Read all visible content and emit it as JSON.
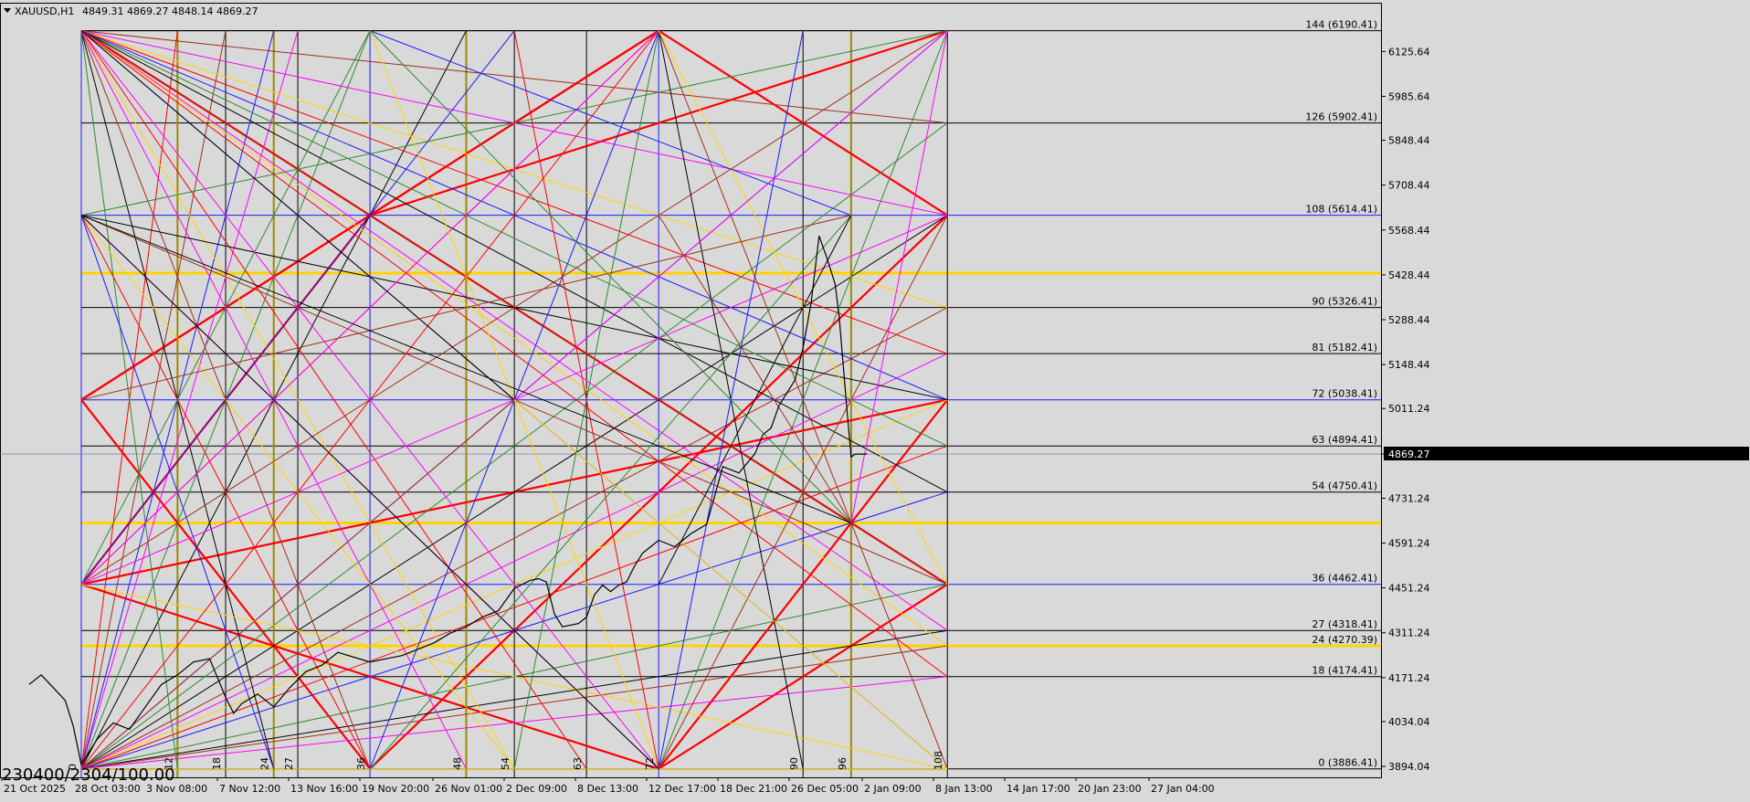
{
  "colors": {
    "background": "#d9d9d9",
    "red": "#ff0000",
    "gold": "#ffd400",
    "blue": "#1a1aff",
    "green": "#2e8b2e",
    "black": "#000000",
    "brown": "#a0301c",
    "magenta": "#ff00ff",
    "olive": "#9a8a00",
    "price_badge_bg": "#000000",
    "price_badge_fg": "#ffffff"
  },
  "chart_data": {
    "type": "line",
    "title": "XAUUSD,H1",
    "ohlc_display": "4849.31 4869.27 4848.14 4869.27",
    "symbol": "XAUUSD",
    "timeframe": "H1",
    "last_price": "4869.27",
    "bottom_caption": "230400/2304/100.00",
    "ylim": [
      3860,
      6235
    ],
    "y_ticks": [
      "6125.64",
      "5985.64",
      "5848.44",
      "5708.44",
      "5568.44",
      "5428.44",
      "5288.44",
      "5148.44",
      "5011.24",
      "4869.27",
      "4731.24",
      "4591.24",
      "4451.24",
      "4311.24",
      "4171.24",
      "4034.04",
      "3894.04"
    ],
    "y_tick_values": [
      6125.64,
      5985.64,
      5848.44,
      5708.44,
      5568.44,
      5428.44,
      5288.44,
      5148.44,
      5011.24,
      4869.27,
      4731.24,
      4591.24,
      4451.24,
      4311.24,
      4171.24,
      4034.04,
      3894.04
    ],
    "x_ticks": [
      "21 Oct 2025",
      "28 Oct 03:00",
      "3 Nov 08:00",
      "7 Nov 12:00",
      "13 Nov 16:00",
      "19 Nov 20:00",
      "26 Nov 01:00",
      "2 Dec 09:00",
      "8 Dec 13:00",
      "12 Dec 17:00",
      "18 Dec 21:00",
      "26 Dec 05:00",
      "2 Jan 09:00",
      "8 Jan 13:00",
      "14 Jan 17:00",
      "20 Jan 23:00",
      "27 Jan 04:00"
    ],
    "levels": [
      {
        "label": "144 (6190.41)",
        "value": 6190.41
      },
      {
        "label": "126 (5902.41)",
        "value": 5902.41
      },
      {
        "label": "108 (5614.41)",
        "value": 5614.41
      },
      {
        "label": "90 (5326.41)",
        "value": 5326.41
      },
      {
        "label": "81 (5182.41)",
        "value": 5182.41
      },
      {
        "label": "72 (5038.41)",
        "value": 5038.41
      },
      {
        "label": "63 (4894.41)",
        "value": 4894.41
      },
      {
        "label": "54 (4750.41)",
        "value": 4750.41
      },
      {
        "label": "36 (4462.41)",
        "value": 4462.41
      },
      {
        "label": "27 (4318.41)",
        "value": 4318.41
      },
      {
        "label": "24 (4270.39)",
        "value": 4270.39
      },
      {
        "label": "18 (4174.41)",
        "value": 4174.41
      },
      {
        "label": "0 (3886.41)",
        "value": 3886.41
      }
    ],
    "gold_levels": [
      5434,
      4654,
      4270.39
    ],
    "time_markers": [
      {
        "label": "0",
        "t": 0
      },
      {
        "label": "12",
        "t": 12
      },
      {
        "label": "18",
        "t": 18
      },
      {
        "label": "24",
        "t": 24
      },
      {
        "label": "27",
        "t": 27
      },
      {
        "label": "36",
        "t": 36
      },
      {
        "label": "48",
        "t": 48
      },
      {
        "label": "54",
        "t": 54
      },
      {
        "label": "63",
        "t": 63
      },
      {
        "label": "72",
        "t": 72
      },
      {
        "label": "90",
        "t": 90
      },
      {
        "label": "96",
        "t": 96
      },
      {
        "label": "108",
        "t": 108
      }
    ],
    "vertical_lines_t": [
      0,
      12,
      18,
      24,
      27,
      36,
      48,
      54,
      63,
      72,
      90,
      96,
      108
    ],
    "gold_vertical_t": [
      12,
      24,
      48,
      96
    ],
    "price_series": {
      "t": [
        -6.5,
        -5,
        -3.5,
        -2,
        -1,
        0,
        2,
        4,
        6,
        8,
        10,
        12,
        14,
        16,
        18,
        19,
        20,
        22,
        24,
        26,
        28,
        30,
        32,
        34,
        36,
        38,
        40,
        42,
        44,
        46,
        47,
        48,
        50,
        52,
        54,
        56,
        57,
        58,
        59,
        60,
        62,
        63,
        64,
        65,
        66,
        67,
        68,
        69,
        70,
        71,
        72,
        73,
        74,
        75,
        76,
        78,
        80,
        82,
        84,
        85,
        86,
        87,
        88,
        89,
        90,
        91,
        92,
        93,
        94,
        94.5,
        95,
        95.5,
        96,
        96.5,
        97,
        97.5,
        98
      ],
      "y": [
        4150,
        4180,
        4140,
        4100,
        4020,
        3900,
        3980,
        4030,
        4010,
        4080,
        4150,
        4180,
        4220,
        4230,
        4110,
        4060,
        4090,
        4120,
        4080,
        4140,
        4190,
        4210,
        4250,
        4235,
        4220,
        4230,
        4240,
        4260,
        4280,
        4310,
        4320,
        4330,
        4360,
        4380,
        4450,
        4475,
        4480,
        4470,
        4370,
        4330,
        4340,
        4360,
        4430,
        4460,
        4440,
        4460,
        4470,
        4520,
        4560,
        4580,
        4600,
        4590,
        4580,
        4600,
        4620,
        4650,
        4830,
        4810,
        4870,
        4930,
        4950,
        5020,
        5060,
        5100,
        5200,
        5340,
        5550,
        5480,
        5400,
        5300,
        5150,
        5000,
        4860,
        4869,
        4869,
        4869,
        4869.27
      ]
    }
  }
}
